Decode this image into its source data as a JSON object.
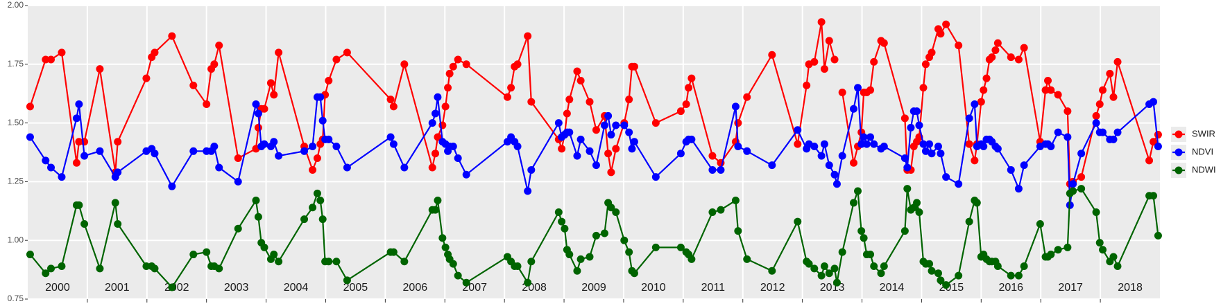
{
  "chart_data": {
    "type": "line",
    "x": [
      2000.04,
      2000.3,
      2000.39,
      2000.57,
      2000.82,
      2000.86,
      2000.95,
      2001.21,
      2001.47,
      2001.51,
      2001.99,
      2002.08,
      2002.13,
      2002.42,
      2002.78,
      2003.0,
      2003.08,
      2003.13,
      2003.21,
      2003.53,
      2003.83,
      2003.87,
      2003.92,
      2003.97,
      2004.08,
      2004.13,
      2004.21,
      2004.64,
      2004.78,
      2004.86,
      2004.91,
      2004.95,
      2004.99,
      2005.05,
      2005.18,
      2005.36,
      2006.09,
      2006.14,
      2006.32,
      2006.79,
      2006.84,
      2006.88,
      2006.96,
      2007.01,
      2007.05,
      2007.08,
      2007.14,
      2007.22,
      2007.36,
      2008.05,
      2008.11,
      2008.17,
      2008.22,
      2008.39,
      2008.45,
      2008.91,
      2008.96,
      2009.01,
      2009.05,
      2009.09,
      2009.22,
      2009.28,
      2009.43,
      2009.54,
      2009.68,
      2009.74,
      2009.79,
      2009.87,
      2010.01,
      2010.09,
      2010.14,
      2010.18,
      2010.54,
      2010.96,
      2011.05,
      2011.09,
      2011.14,
      2011.49,
      2011.63,
      2011.88,
      2011.92,
      2012.07,
      2012.49,
      2012.92,
      2013.07,
      2013.11,
      2013.2,
      2013.32,
      2013.37,
      2013.45,
      2013.54,
      2013.58,
      2013.67,
      2013.86,
      2013.93,
      2013.99,
      2014.03,
      2014.08,
      2014.14,
      2014.2,
      2014.32,
      2014.37,
      2014.72,
      2014.76,
      2014.82,
      2014.87,
      2014.92,
      2014.96,
      2015.03,
      2015.07,
      2015.13,
      2015.17,
      2015.28,
      2015.32,
      2015.41,
      2015.62,
      2015.8,
      2015.89,
      2015.93,
      2016.0,
      2016.04,
      2016.09,
      2016.14,
      2016.18,
      2016.24,
      2016.28,
      2016.5,
      2016.63,
      2016.72,
      2016.99,
      2017.08,
      2017.12,
      2017.17,
      2017.29,
      2017.45,
      2017.49,
      2017.54,
      2017.68,
      2017.93,
      2017.99,
      2018.04,
      2018.16,
      2018.22,
      2018.29,
      2018.82,
      2018.89,
      2018.97
    ],
    "series": [
      {
        "name": "SWIR",
        "color": "#ff0000",
        "values": [
          1.57,
          1.77,
          1.77,
          1.8,
          1.33,
          1.42,
          1.42,
          1.73,
          1.29,
          1.42,
          1.69,
          1.78,
          1.8,
          1.87,
          1.66,
          1.58,
          1.73,
          1.75,
          1.83,
          1.35,
          1.39,
          1.48,
          1.56,
          1.56,
          1.67,
          1.62,
          1.8,
          1.4,
          1.3,
          1.35,
          1.41,
          1.43,
          1.62,
          1.68,
          1.77,
          1.8,
          1.6,
          1.57,
          1.75,
          1.31,
          1.37,
          1.44,
          1.49,
          1.57,
          1.65,
          1.71,
          1.74,
          1.77,
          1.75,
          1.61,
          1.65,
          1.74,
          1.75,
          1.87,
          1.59,
          1.43,
          1.39,
          1.45,
          1.54,
          1.6,
          1.72,
          1.68,
          1.59,
          1.47,
          1.53,
          1.37,
          1.29,
          1.39,
          1.5,
          1.6,
          1.74,
          1.74,
          1.5,
          1.55,
          1.58,
          1.65,
          1.69,
          1.36,
          1.33,
          1.42,
          1.5,
          1.61,
          1.79,
          1.41,
          1.66,
          1.75,
          1.76,
          1.93,
          1.73,
          1.85,
          1.77,
          null,
          1.63,
          1.33,
          1.4,
          1.46,
          1.63,
          1.63,
          1.64,
          1.76,
          1.85,
          1.84,
          1.52,
          1.3,
          1.3,
          1.4,
          1.42,
          1.44,
          1.65,
          1.75,
          1.78,
          1.8,
          1.9,
          1.88,
          1.92,
          1.83,
          1.41,
          1.34,
          1.41,
          1.59,
          1.64,
          1.69,
          1.77,
          1.78,
          1.81,
          1.84,
          1.78,
          1.77,
          1.82,
          1.42,
          1.64,
          1.68,
          1.64,
          1.62,
          1.55,
          1.24,
          1.25,
          1.27,
          1.53,
          1.58,
          1.64,
          1.71,
          1.61,
          1.76,
          1.34,
          1.42,
          1.45
        ]
      },
      {
        "name": "NDVI",
        "color": "#0000ff",
        "values": [
          1.44,
          1.34,
          1.31,
          1.27,
          1.52,
          1.58,
          1.36,
          1.38,
          1.27,
          1.29,
          1.38,
          1.39,
          1.37,
          1.23,
          1.38,
          1.38,
          1.38,
          1.4,
          1.31,
          1.25,
          1.58,
          1.54,
          1.4,
          1.41,
          1.4,
          1.42,
          1.36,
          1.38,
          1.4,
          1.61,
          1.61,
          1.51,
          1.43,
          1.43,
          1.4,
          1.31,
          1.44,
          1.41,
          1.31,
          1.5,
          1.54,
          1.61,
          1.42,
          1.41,
          1.38,
          1.4,
          1.4,
          1.35,
          1.28,
          1.42,
          1.44,
          1.42,
          1.4,
          1.21,
          1.3,
          1.5,
          1.44,
          1.45,
          1.46,
          1.46,
          1.36,
          1.43,
          1.38,
          1.32,
          1.49,
          1.53,
          1.45,
          1.49,
          1.49,
          1.46,
          1.39,
          1.42,
          1.27,
          1.37,
          1.42,
          1.43,
          1.43,
          1.3,
          1.3,
          1.57,
          1.4,
          1.38,
          1.32,
          1.47,
          1.39,
          1.41,
          1.4,
          1.36,
          1.41,
          1.32,
          1.28,
          1.24,
          1.36,
          1.56,
          1.65,
          1.41,
          1.44,
          1.41,
          1.44,
          1.41,
          1.39,
          1.4,
          1.35,
          1.31,
          1.48,
          1.55,
          1.55,
          1.49,
          1.41,
          1.38,
          1.41,
          1.37,
          1.4,
          1.37,
          1.27,
          1.24,
          1.52,
          1.58,
          1.4,
          1.41,
          1.4,
          1.43,
          1.43,
          1.42,
          1.4,
          1.39,
          1.3,
          1.22,
          1.32,
          1.4,
          1.41,
          1.41,
          1.4,
          1.46,
          1.44,
          1.15,
          1.24,
          1.37,
          1.5,
          1.46,
          1.46,
          1.43,
          1.43,
          1.46,
          1.58,
          1.59,
          1.4
        ]
      },
      {
        "name": "NDWI",
        "color": "#006400",
        "values": [
          0.94,
          0.86,
          0.88,
          0.89,
          1.15,
          1.15,
          1.07,
          0.88,
          1.16,
          1.07,
          0.89,
          0.89,
          0.88,
          0.8,
          0.94,
          0.95,
          0.89,
          0.89,
          0.88,
          1.05,
          1.17,
          1.1,
          0.99,
          0.97,
          0.92,
          0.94,
          0.91,
          1.09,
          1.14,
          1.2,
          1.17,
          1.09,
          0.91,
          0.91,
          0.91,
          0.83,
          0.95,
          0.95,
          0.91,
          1.13,
          1.13,
          1.17,
          1.01,
          0.97,
          0.94,
          0.92,
          0.9,
          0.85,
          0.82,
          0.93,
          0.91,
          0.89,
          0.89,
          0.82,
          0.91,
          1.12,
          1.08,
          1.05,
          0.96,
          0.94,
          0.87,
          0.92,
          0.93,
          1.02,
          1.03,
          1.16,
          1.14,
          1.12,
          1.0,
          0.95,
          0.87,
          0.86,
          0.97,
          0.97,
          0.95,
          0.94,
          0.92,
          1.12,
          1.13,
          1.17,
          1.04,
          0.92,
          0.87,
          1.08,
          0.91,
          0.9,
          0.88,
          0.85,
          0.89,
          0.86,
          0.88,
          0.82,
          0.95,
          1.16,
          1.21,
          1.04,
          1.01,
          0.94,
          0.94,
          0.89,
          0.86,
          0.89,
          1.04,
          1.22,
          1.13,
          1.14,
          1.16,
          1.12,
          0.91,
          0.9,
          0.9,
          0.87,
          0.86,
          0.83,
          0.81,
          0.85,
          1.08,
          1.17,
          1.16,
          0.93,
          0.94,
          0.92,
          0.91,
          0.91,
          0.91,
          0.89,
          0.85,
          0.85,
          0.89,
          1.07,
          0.93,
          0.93,
          0.94,
          0.96,
          0.97,
          1.2,
          1.21,
          1.22,
          1.12,
          0.99,
          0.96,
          0.91,
          0.93,
          0.89,
          1.19,
          1.19,
          1.02
        ]
      }
    ],
    "xlim": [
      2000,
      2019
    ],
    "xticks": [
      {
        "value": 2000.5,
        "label": "2000"
      },
      {
        "value": 2001.5,
        "label": "2001"
      },
      {
        "value": 2002.5,
        "label": "2002"
      },
      {
        "value": 2003.5,
        "label": "2003"
      },
      {
        "value": 2004.5,
        "label": "2004"
      },
      {
        "value": 2005.5,
        "label": "2005"
      },
      {
        "value": 2006.5,
        "label": "2006"
      },
      {
        "value": 2007.5,
        "label": "2007"
      },
      {
        "value": 2008.5,
        "label": "2008"
      },
      {
        "value": 2009.5,
        "label": "2009"
      },
      {
        "value": 2010.5,
        "label": "2010"
      },
      {
        "value": 2011.5,
        "label": "2011"
      },
      {
        "value": 2012.5,
        "label": "2012"
      },
      {
        "value": 2013.5,
        "label": "2013"
      },
      {
        "value": 2014.5,
        "label": "2014"
      },
      {
        "value": 2015.5,
        "label": "2015"
      },
      {
        "value": 2016.5,
        "label": "2016"
      },
      {
        "value": 2017.5,
        "label": "2017"
      },
      {
        "value": 2018.5,
        "label": "2018"
      }
    ],
    "xgrid": [
      2001,
      2002,
      2003,
      2004,
      2005,
      2006,
      2007,
      2008,
      2009,
      2010,
      2011,
      2012,
      2013,
      2014,
      2015,
      2016,
      2017,
      2018
    ],
    "ylim": [
      0.75,
      2.0
    ],
    "yticks": [
      0.75,
      {
        "value": 1.0,
        "label": "1.00"
      },
      1.25,
      {
        "value": 1.5,
        "label": "1.50"
      },
      1.75,
      {
        "value": 2.0,
        "label": "2.00"
      }
    ],
    "grid": true,
    "legend": "right"
  }
}
